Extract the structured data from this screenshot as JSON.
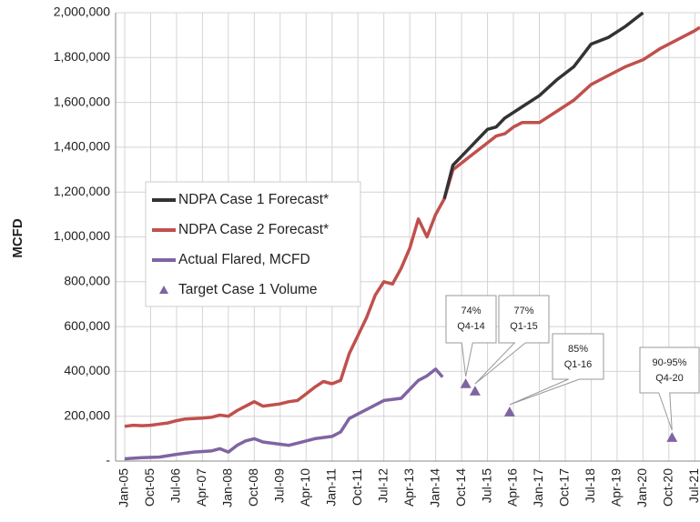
{
  "chart_data": {
    "type": "line",
    "ylabel": "MCFD",
    "xlim": [
      2005,
      2021.65
    ],
    "ylim": [
      0,
      2000000
    ],
    "grid": true,
    "legend": "left",
    "yticks": [
      {
        "value": 0,
        "label": "-"
      },
      {
        "value": 200000,
        "label": "200,000"
      },
      {
        "value": 400000,
        "label": "400,000"
      },
      {
        "value": 600000,
        "label": "600,000"
      },
      {
        "value": 800000,
        "label": "800,000"
      },
      {
        "value": 1000000,
        "label": "1,000,000"
      },
      {
        "value": 1200000,
        "label": "1,200,000"
      },
      {
        "value": 1400000,
        "label": "1,400,000"
      },
      {
        "value": 1600000,
        "label": "1,600,000"
      },
      {
        "value": 1800000,
        "label": "1,800,000"
      },
      {
        "value": 2000000,
        "label": "2,000,000"
      }
    ],
    "xticks": [
      {
        "value": 2005,
        "label": "Jan-05"
      },
      {
        "value": 2005.75,
        "label": "Oct-05"
      },
      {
        "value": 2006.5,
        "label": "Jul-06"
      },
      {
        "value": 2007.25,
        "label": "Apr-07"
      },
      {
        "value": 2008,
        "label": "Jan-08"
      },
      {
        "value": 2008.75,
        "label": "Oct-08"
      },
      {
        "value": 2009.5,
        "label": "Jul-09"
      },
      {
        "value": 2010.25,
        "label": "Apr-10"
      },
      {
        "value": 2011,
        "label": "Jan-11"
      },
      {
        "value": 2011.75,
        "label": "Oct-11"
      },
      {
        "value": 2012.5,
        "label": "Jul-12"
      },
      {
        "value": 2013.25,
        "label": "Apr-13"
      },
      {
        "value": 2014,
        "label": "Jan-14"
      },
      {
        "value": 2014.75,
        "label": "Oct-14"
      },
      {
        "value": 2015.5,
        "label": "Jul-15"
      },
      {
        "value": 2016.25,
        "label": "Apr-16"
      },
      {
        "value": 2017,
        "label": "Jan-17"
      },
      {
        "value": 2017.75,
        "label": "Oct-17"
      },
      {
        "value": 2018.5,
        "label": "Jul-18"
      },
      {
        "value": 2019.25,
        "label": "Apr-19"
      },
      {
        "value": 2020,
        "label": "Jan-20"
      },
      {
        "value": 2020.75,
        "label": "Oct-20"
      },
      {
        "value": 2021.5,
        "label": "Jul-21"
      }
    ],
    "series": [
      {
        "name": "NDPA Case 1 Forecast*",
        "color": "#333333",
        "kind": "line",
        "x": [
          2014.25,
          2014.5,
          2014.75,
          2015,
          2015.25,
          2015.5,
          2015.75,
          2016,
          2016.5,
          2017,
          2017.5,
          2018,
          2018.5,
          2019,
          2019.5,
          2020
        ],
        "values": [
          1170000,
          1320000,
          1360000,
          1400000,
          1440000,
          1480000,
          1490000,
          1530000,
          1580000,
          1630000,
          1700000,
          1760000,
          1860000,
          1890000,
          1940000,
          2000000
        ]
      },
      {
        "name": "NDPA Case 2 Forecast*",
        "color": "#c0504d",
        "kind": "line",
        "x": [
          2005,
          2005.25,
          2005.5,
          2005.75,
          2006,
          2006.25,
          2006.5,
          2006.75,
          2007,
          2007.25,
          2007.5,
          2007.75,
          2008,
          2008.25,
          2008.5,
          2008.75,
          2009,
          2009.25,
          2009.5,
          2009.75,
          2010,
          2010.25,
          2010.5,
          2010.75,
          2011,
          2011.25,
          2011.5,
          2011.75,
          2012,
          2012.25,
          2012.5,
          2012.75,
          2013,
          2013.25,
          2013.5,
          2013.75,
          2014,
          2014.25,
          2014.5,
          2014.75,
          2015,
          2015.25,
          2015.5,
          2015.75,
          2016,
          2016.25,
          2016.5,
          2017,
          2017.5,
          2018,
          2018.5,
          2019,
          2019.5,
          2020,
          2020.5,
          2021,
          2021.5,
          2021.65
        ],
        "values": [
          155000,
          160000,
          158000,
          160000,
          165000,
          170000,
          180000,
          188000,
          190000,
          192000,
          195000,
          205000,
          200000,
          225000,
          245000,
          265000,
          245000,
          250000,
          255000,
          265000,
          270000,
          300000,
          330000,
          355000,
          345000,
          360000,
          480000,
          560000,
          640000,
          740000,
          800000,
          790000,
          860000,
          950000,
          1080000,
          1000000,
          1100000,
          1170000,
          1300000,
          1330000,
          1360000,
          1390000,
          1420000,
          1450000,
          1460000,
          1490000,
          1510000,
          1510000,
          1560000,
          1610000,
          1680000,
          1720000,
          1760000,
          1790000,
          1840000,
          1880000,
          1920000,
          1935000
        ]
      },
      {
        "name": "Actual Flared, MCFD",
        "color": "#8064a2",
        "kind": "line",
        "x": [
          2005,
          2005.5,
          2006,
          2006.5,
          2007,
          2007.5,
          2007.75,
          2008,
          2008.25,
          2008.5,
          2008.75,
          2009,
          2009.5,
          2009.75,
          2010,
          2010.5,
          2011,
          2011.25,
          2011.5,
          2011.75,
          2012,
          2012.5,
          2013,
          2013.25,
          2013.5,
          2013.75,
          2014,
          2014.2
        ],
        "values": [
          10000,
          15000,
          18000,
          30000,
          40000,
          45000,
          55000,
          40000,
          70000,
          90000,
          100000,
          85000,
          75000,
          70000,
          80000,
          100000,
          110000,
          130000,
          190000,
          210000,
          230000,
          270000,
          280000,
          320000,
          360000,
          380000,
          410000,
          375000
        ]
      },
      {
        "name": "Target Case 1 Volume",
        "color": "#8064a2",
        "kind": "marker",
        "x": [
          2014.87,
          2015.14,
          2016.14,
          2020.84
        ],
        "values": [
          345000,
          312000,
          219000,
          105000
        ]
      }
    ],
    "annotations": [
      {
        "lines": [
          "74%",
          "Q4-14"
        ]
      },
      {
        "lines": [
          "77%",
          "Q1-15"
        ]
      },
      {
        "lines": [
          "85%",
          "Q1-16"
        ]
      },
      {
        "lines": [
          "90-95%",
          "Q4-20"
        ]
      }
    ]
  }
}
